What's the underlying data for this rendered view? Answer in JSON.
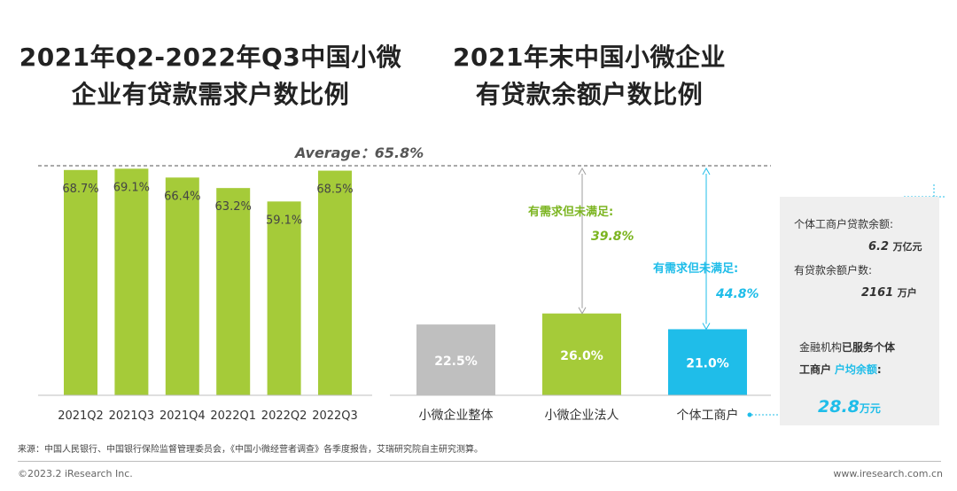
{
  "titles": {
    "left_line1": "2021年Q2-2022年Q3中国小微",
    "left_line2": "企业有贷款需求户数比例",
    "right_line1": "2021年末中国小微企业",
    "right_line2": "有贷款余额户数比例"
  },
  "average_label": "Average：65.8%",
  "colors": {
    "green": "#a5cb39",
    "gray": "#bfbfbf",
    "blue": "#1fbde9",
    "green_text": "#7cb521",
    "panel_bg": "#efefef"
  },
  "chart_data": [
    {
      "type": "bar",
      "categories": [
        "2021Q2",
        "2021Q3",
        "2021Q4",
        "2022Q1",
        "2022Q2",
        "2022Q3"
      ],
      "values": [
        68.7,
        69.1,
        66.4,
        63.2,
        59.1,
        68.5
      ],
      "value_labels": [
        "68.7%",
        "69.1%",
        "66.4%",
        "63.2%",
        "59.1%",
        "68.5%"
      ],
      "average": 65.8,
      "ylim": [
        0,
        70
      ],
      "title": "2021年Q2-2022年Q3中国小微企业有贷款需求户数比例",
      "xlabel": "",
      "ylabel": ""
    },
    {
      "type": "bar",
      "categories": [
        "小微企业整体",
        "小微企业法人",
        "个体工商户"
      ],
      "values": [
        22.5,
        26.0,
        21.0
      ],
      "value_labels": [
        "22.5%",
        "26.0%",
        "21.0%"
      ],
      "unmet_demand": [
        {
          "category": "小微企业法人",
          "label": "有需求但未满足:",
          "value": 39.8,
          "value_label": "39.8%"
        },
        {
          "category": "个体工商户",
          "label": "有需求但未满足:",
          "value": 44.8,
          "value_label": "44.8%"
        }
      ],
      "title": "2021年末中国小微企业有贷款余额户数比例",
      "xlabel": "",
      "ylabel": ""
    }
  ],
  "side_panel": {
    "loan_balance_label": "个体工商户贷款余额:",
    "loan_balance_value": "6.2",
    "loan_balance_unit": "万亿元",
    "accounts_label": "有贷款余额户数:",
    "accounts_value": "2161",
    "accounts_unit": "万户",
    "served_prefix": "金融机构",
    "served_bold": "已服务个体",
    "served_line2_bold": "工商户",
    "served_line2_blue": "户均余额",
    "served_line2_colon": ":",
    "avg_balance_value": "28.8",
    "avg_balance_unit": "万元"
  },
  "source": "来源：中国人民银行、中国银行保险监督管理委员会，《中国小微经营者调查》各季度报告，艾瑞研究院自主研究测算。",
  "footer": {
    "copyright": "©2023.2 iResearch Inc.",
    "website": "www.iresearch.com.cn"
  }
}
